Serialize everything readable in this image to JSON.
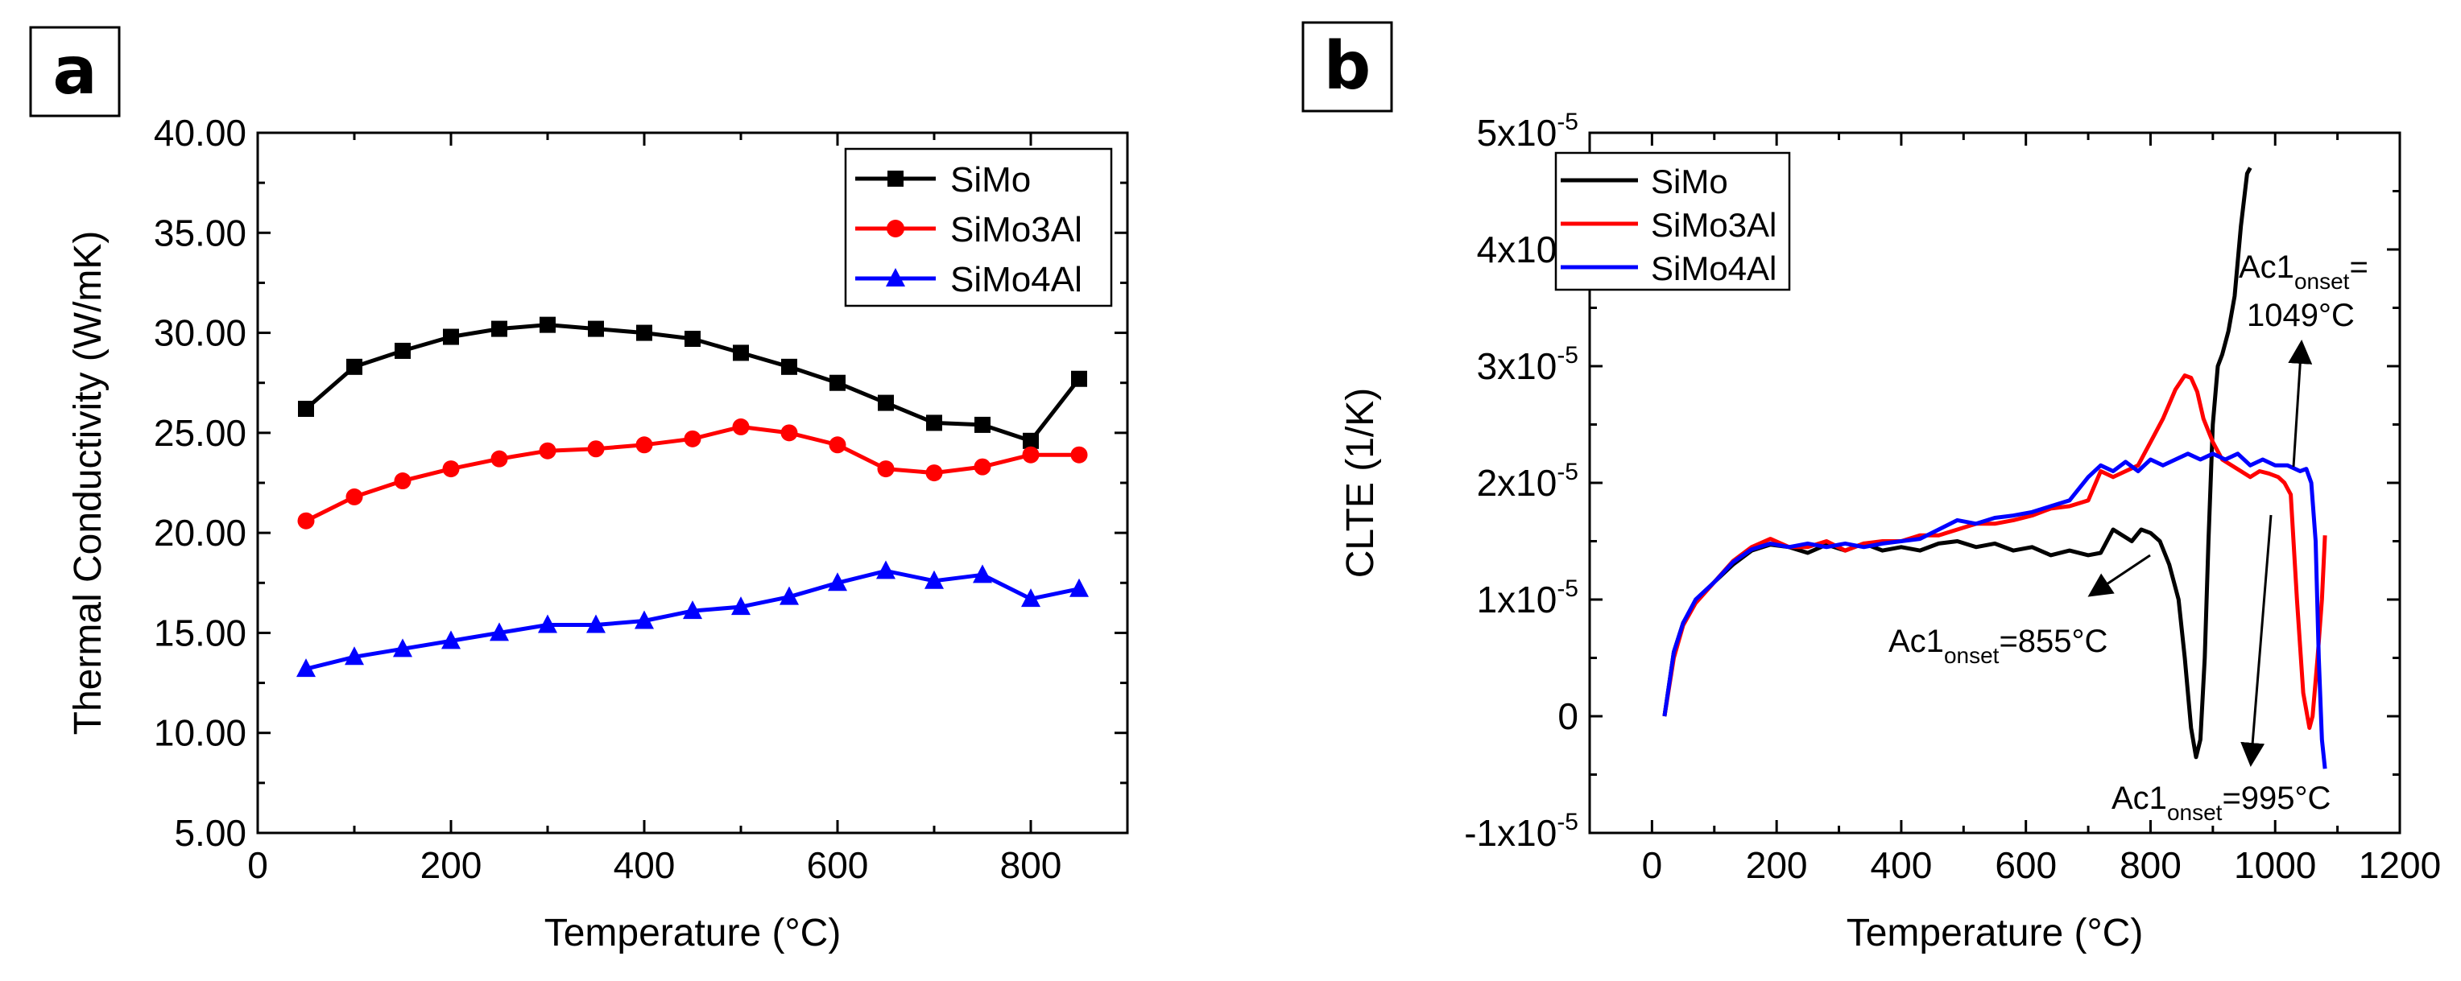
{
  "figure_labels": {
    "a": "a",
    "b": "b"
  },
  "colors": {
    "SiMo": "#000000",
    "SiMo3Al": "#ff0000",
    "SiMo4Al": "#0000ff"
  },
  "chart_data": [
    {
      "type": "line",
      "panel": "a",
      "title": "",
      "xlabel": "Temperature (°C)",
      "ylabel": "Thermal Conductivity (W/mK)",
      "xlim": [
        0,
        900
      ],
      "ylim": [
        5,
        40
      ],
      "xticks": [
        0,
        200,
        400,
        600,
        800
      ],
      "xtick_labels": [
        "0",
        "200",
        "400",
        "600",
        "800"
      ],
      "yticks": [
        5,
        10,
        15,
        20,
        25,
        30,
        35,
        40
      ],
      "ytick_labels": [
        "5.00",
        "10.00",
        "15.00",
        "20.00",
        "25.00",
        "30.00",
        "35.00",
        "40.00"
      ],
      "legend_position": "top-right",
      "x": [
        50,
        100,
        150,
        200,
        250,
        300,
        350,
        400,
        450,
        500,
        550,
        600,
        650,
        700,
        750,
        800,
        850
      ],
      "series": [
        {
          "name": "SiMo",
          "color": "#000000",
          "marker": "square",
          "values": [
            26.2,
            28.3,
            29.1,
            29.8,
            30.2,
            30.4,
            30.2,
            30.0,
            29.7,
            29.0,
            28.3,
            27.5,
            26.5,
            25.5,
            25.4,
            24.6,
            27.7
          ]
        },
        {
          "name": "SiMo3Al",
          "color": "#ff0000",
          "marker": "circle",
          "values": [
            20.6,
            21.8,
            22.6,
            23.2,
            23.7,
            24.1,
            24.2,
            24.4,
            24.7,
            25.3,
            25.0,
            24.4,
            23.2,
            23.0,
            23.3,
            23.9,
            23.9
          ]
        },
        {
          "name": "SiMo4Al",
          "color": "#0000ff",
          "marker": "triangle",
          "values": [
            13.2,
            13.8,
            14.2,
            14.6,
            15.0,
            15.4,
            15.4,
            15.6,
            16.1,
            16.3,
            16.8,
            17.5,
            18.1,
            17.6,
            17.9,
            16.7,
            17.2
          ]
        }
      ]
    },
    {
      "type": "line",
      "panel": "b",
      "title": "",
      "xlabel": "Temperature (°C)",
      "ylabel": "CLTE (1/K)",
      "xlim": [
        -100,
        1200
      ],
      "ylim": [
        -1e-05,
        5e-05
      ],
      "xticks": [
        0,
        200,
        400,
        600,
        800,
        1000,
        1200
      ],
      "xtick_labels": [
        "0",
        "200",
        "400",
        "600",
        "800",
        "1000",
        "1200"
      ],
      "yticks": [
        -1e-05,
        0,
        1e-05,
        2e-05,
        3e-05,
        4e-05,
        5e-05
      ],
      "ytick_labels": [
        {
          "base": "-1x10",
          "exp": "-5"
        },
        {
          "base": "0",
          "exp": ""
        },
        {
          "base": "1x10",
          "exp": "-5"
        },
        {
          "base": "2x10",
          "exp": "-5"
        },
        {
          "base": "3x10",
          "exp": "-5"
        },
        {
          "base": "4x10",
          "exp": "-5"
        },
        {
          "base": "5x10",
          "exp": "-5"
        }
      ],
      "legend_position": "top-left",
      "series": [
        {
          "name": "SiMo",
          "color": "#000000",
          "x": [
            20,
            35,
            50,
            70,
            100,
            130,
            160,
            190,
            220,
            250,
            280,
            310,
            340,
            370,
            400,
            430,
            460,
            490,
            520,
            550,
            580,
            610,
            640,
            670,
            700,
            720,
            740,
            755,
            770,
            785,
            800,
            815,
            830,
            845,
            855,
            865,
            873,
            880,
            887,
            893,
            900,
            908,
            915,
            925,
            935,
            945,
            955,
            960
          ],
          "y": [
            0.0,
            0.55,
            0.8,
            0.98,
            1.15,
            1.3,
            1.42,
            1.47,
            1.45,
            1.4,
            1.47,
            1.42,
            1.48,
            1.42,
            1.45,
            1.42,
            1.48,
            1.5,
            1.45,
            1.48,
            1.42,
            1.45,
            1.38,
            1.42,
            1.38,
            1.4,
            1.6,
            1.55,
            1.5,
            1.6,
            1.57,
            1.5,
            1.3,
            1.0,
            0.5,
            -0.1,
            -0.35,
            -0.2,
            0.5,
            1.5,
            2.5,
            3.0,
            3.1,
            3.3,
            3.6,
            4.2,
            4.65,
            4.7
          ]
        },
        {
          "name": "SiMo3Al",
          "color": "#ff0000",
          "x": [
            20,
            35,
            50,
            70,
            100,
            130,
            160,
            190,
            220,
            250,
            280,
            310,
            340,
            370,
            400,
            430,
            460,
            490,
            520,
            550,
            580,
            610,
            640,
            670,
            700,
            720,
            740,
            760,
            780,
            800,
            820,
            840,
            855,
            865,
            875,
            885,
            900,
            915,
            930,
            945,
            960,
            975,
            990,
            1005,
            1015,
            1025,
            1035,
            1045,
            1055,
            1060,
            1068,
            1075,
            1080
          ],
          "y": [
            0.0,
            0.5,
            0.78,
            0.97,
            1.15,
            1.33,
            1.45,
            1.52,
            1.45,
            1.45,
            1.5,
            1.42,
            1.48,
            1.5,
            1.5,
            1.55,
            1.55,
            1.6,
            1.65,
            1.65,
            1.68,
            1.72,
            1.78,
            1.8,
            1.85,
            2.1,
            2.05,
            2.1,
            2.15,
            2.35,
            2.55,
            2.8,
            2.92,
            2.9,
            2.78,
            2.55,
            2.35,
            2.2,
            2.15,
            2.1,
            2.05,
            2.1,
            2.08,
            2.05,
            2.0,
            1.9,
            1.0,
            0.2,
            -0.1,
            0.0,
            0.5,
            1.0,
            1.55
          ]
        },
        {
          "name": "SiMo4Al",
          "color": "#0000ff",
          "x": [
            20,
            35,
            50,
            70,
            100,
            130,
            160,
            190,
            220,
            250,
            280,
            310,
            340,
            370,
            400,
            430,
            460,
            490,
            520,
            550,
            580,
            610,
            640,
            670,
            700,
            720,
            740,
            760,
            780,
            800,
            820,
            840,
            860,
            880,
            900,
            920,
            940,
            960,
            980,
            1000,
            1020,
            1040,
            1050,
            1058,
            1065,
            1070,
            1075,
            1080
          ],
          "y": [
            0.0,
            0.55,
            0.8,
            1.0,
            1.15,
            1.32,
            1.43,
            1.48,
            1.45,
            1.48,
            1.45,
            1.48,
            1.45,
            1.48,
            1.5,
            1.52,
            1.6,
            1.68,
            1.65,
            1.7,
            1.72,
            1.75,
            1.8,
            1.85,
            2.05,
            2.15,
            2.1,
            2.18,
            2.1,
            2.2,
            2.15,
            2.2,
            2.25,
            2.2,
            2.25,
            2.2,
            2.25,
            2.15,
            2.2,
            2.15,
            2.15,
            2.1,
            2.12,
            2.0,
            1.5,
            0.5,
            -0.2,
            -0.45
          ]
        }
      ],
      "annotations": [
        {
          "id": "ac1-855",
          "base": "Ac1",
          "sub": "onset",
          "rest": "=855°C"
        },
        {
          "id": "ac1-995",
          "base": "Ac1",
          "sub": "onset",
          "rest": "=995°C"
        },
        {
          "id": "ac1-1049",
          "base": "Ac1",
          "sub": "onset",
          "rest": "=",
          "line2": "1049°C"
        }
      ]
    }
  ]
}
